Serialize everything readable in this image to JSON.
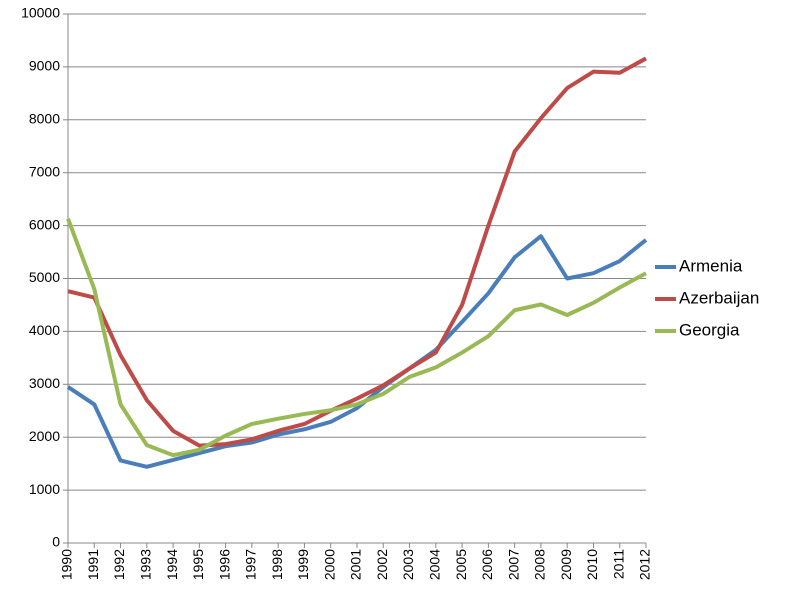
{
  "chart_data": {
    "type": "line",
    "categories": [
      "1990",
      "1991",
      "1992",
      "1993",
      "1994",
      "1995",
      "1996",
      "1997",
      "1998",
      "1999",
      "2000",
      "2001",
      "2002",
      "2003",
      "2004",
      "2005",
      "2006",
      "2007",
      "2008",
      "2009",
      "2010",
      "2011",
      "2012"
    ],
    "series": [
      {
        "name": "Armenia",
        "color": "#4a7ebb",
        "values": [
          2950,
          2620,
          1560,
          1440,
          1570,
          1700,
          1830,
          1900,
          2050,
          2150,
          2290,
          2550,
          2950,
          3300,
          3650,
          4180,
          4720,
          5400,
          5800,
          5000,
          5100,
          5330,
          5730
        ]
      },
      {
        "name": "Azerbaijan",
        "color": "#be4b48",
        "values": [
          4760,
          4640,
          3550,
          2700,
          2120,
          1840,
          1870,
          1960,
          2120,
          2250,
          2500,
          2730,
          2980,
          3300,
          3600,
          4500,
          6000,
          7400,
          8030,
          8600,
          8910,
          8890,
          9160
        ]
      },
      {
        "name": "Georgia",
        "color": "#98b954",
        "values": [
          6130,
          4800,
          2620,
          1850,
          1660,
          1760,
          2030,
          2250,
          2350,
          2440,
          2510,
          2620,
          2820,
          3140,
          3320,
          3600,
          3910,
          4400,
          4510,
          4310,
          4540,
          4830,
          5100
        ]
      }
    ],
    "ylim": [
      0,
      10000
    ],
    "yticks": [
      0,
      1000,
      2000,
      3000,
      4000,
      5000,
      6000,
      7000,
      8000,
      9000,
      10000
    ],
    "grid": true,
    "legend": "right"
  }
}
